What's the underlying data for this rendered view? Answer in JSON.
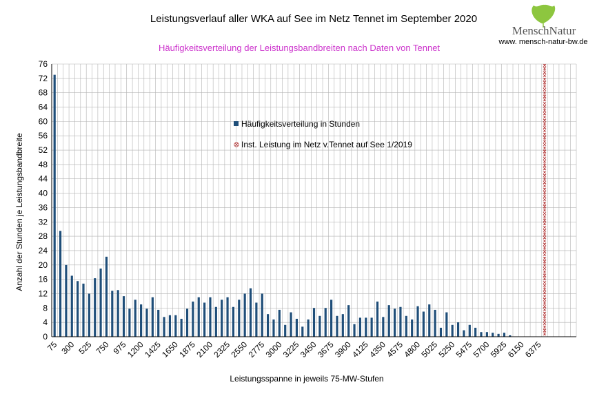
{
  "colors": {
    "bar": "#1f4e79",
    "grid": "#b3b3b3",
    "subtitle": "#cc33cc",
    "marker": "#b03030",
    "logo_text": "#555555",
    "logo_leaf": "#8dc63f"
  },
  "logo": {
    "name": "MenschNatur",
    "url": "www. mensch-natur-bw.de"
  },
  "chart_data": {
    "type": "bar",
    "title": "Leistungsverlauf aller WKA auf See im Netz Tennet im September 2020",
    "subtitle": "Häufigkeitsverteilung der Leistungsbandbreiten nach Daten von Tennet",
    "xlabel": "Leistungsspanne in jeweils 75-MW-Stufen",
    "ylabel": "Anzahl der Stunden je Leistungsbandbreite",
    "ylim": [
      0,
      76
    ],
    "yticks": [
      0,
      4,
      8,
      12,
      16,
      20,
      24,
      28,
      32,
      36,
      40,
      44,
      48,
      52,
      56,
      60,
      64,
      68,
      72,
      76
    ],
    "xtick_labels": [
      "75",
      "300",
      "525",
      "750",
      "975",
      "1200",
      "1425",
      "1650",
      "1875",
      "2100",
      "2325",
      "2550",
      "2775",
      "3000",
      "3225",
      "3450",
      "3675",
      "3900",
      "4125",
      "4350",
      "4575",
      "4800",
      "5025",
      "5250",
      "5475",
      "5700",
      "5925",
      "6150",
      "6375"
    ],
    "x_start": 75,
    "x_step": 75,
    "values": [
      73,
      29.5,
      20,
      17,
      15.5,
      14.8,
      12,
      16.3,
      19,
      22.3,
      12.8,
      13,
      11.3,
      7.8,
      10.3,
      9,
      7.8,
      11,
      7.5,
      5.5,
      6,
      6,
      5,
      7.8,
      9.8,
      11,
      9.5,
      11,
      8.3,
      10.3,
      11,
      8.3,
      10.3,
      12,
      13.5,
      9.5,
      12,
      6.3,
      4.8,
      7.5,
      3.3,
      6.8,
      5,
      2.8,
      4.8,
      8,
      5.8,
      8,
      10.3,
      5.8,
      6.3,
      8.8,
      3.5,
      5.3,
      5.3,
      5.3,
      9.8,
      5.5,
      8.8,
      7.8,
      8.3,
      5.8,
      4.8,
      8.5,
      7,
      9,
      7.5,
      2.5,
      6.8,
      3.3,
      4,
      1.8,
      3.3,
      2.5,
      1.3,
      1.3,
      1.1,
      0.8,
      1.1,
      0.4,
      0,
      0,
      0,
      0,
      0,
      0,
      0,
      0,
      0,
      0,
      0
    ],
    "marker_x": 6425,
    "x_max_slots": 91,
    "legend": [
      {
        "label": "Häufigkeitsverteilung in Stunden",
        "type": "bar"
      },
      {
        "label": "Inst. Leistung im Netz v.Tennet auf See 1/2019",
        "type": "marker"
      }
    ]
  }
}
